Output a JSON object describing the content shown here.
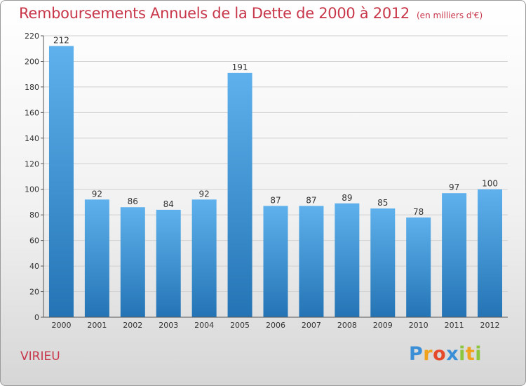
{
  "title": "Remboursements Annuels de la Dette de 2000 à 2012",
  "unit": "(en milliers d'€)",
  "commune": "VIRIEU",
  "logo": {
    "letters": [
      "P",
      "r",
      "o",
      "x",
      "i",
      "t",
      "i"
    ],
    "colors": [
      "#3b8fd6",
      "#f0a21c",
      "#e54a2a",
      "#3b8fd6",
      "#8cc63f",
      "#f0a21c",
      "#8cc63f"
    ]
  },
  "colors": {
    "title": "#c8364a",
    "bar_light": "#5eb1ec",
    "bar_dark": "#2474b5",
    "grid": "#d0d0d0"
  },
  "chart_data": {
    "type": "bar",
    "categories": [
      "2000",
      "2001",
      "2002",
      "2003",
      "2004",
      "2005",
      "2006",
      "2007",
      "2008",
      "2009",
      "2010",
      "2011",
      "2012"
    ],
    "values": [
      212,
      92,
      86,
      84,
      92,
      191,
      87,
      87,
      89,
      85,
      78,
      97,
      100
    ],
    "ylim": [
      0,
      220
    ],
    "yticks": [
      0,
      20,
      40,
      60,
      80,
      100,
      120,
      140,
      160,
      180,
      200,
      220
    ],
    "grid": true
  }
}
